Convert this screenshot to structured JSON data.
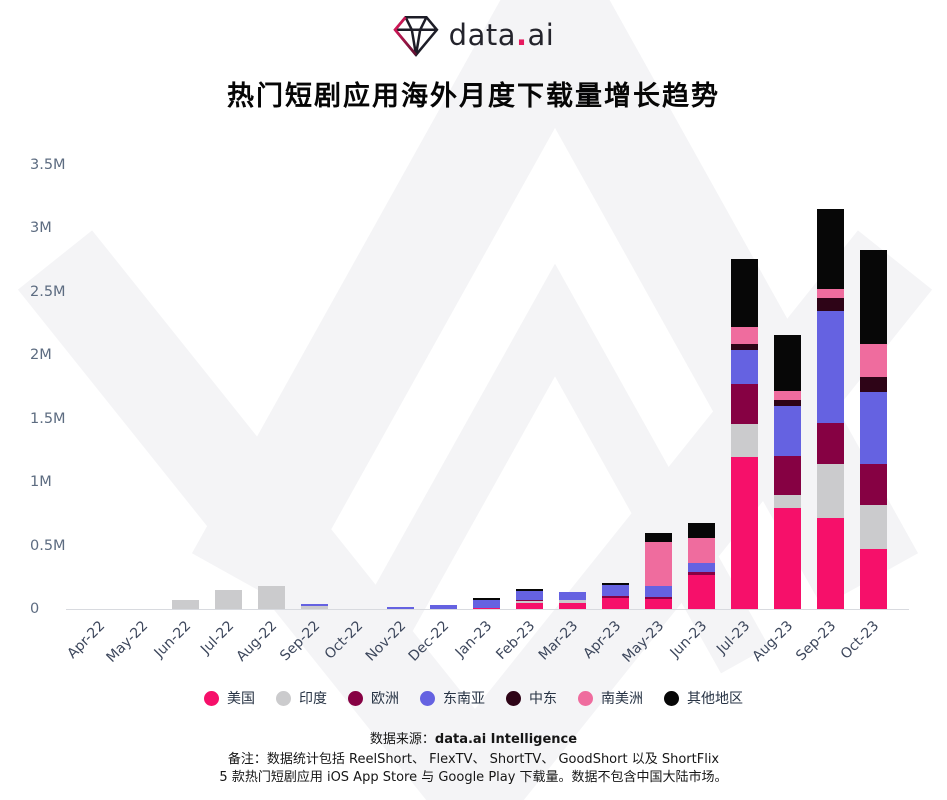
{
  "header": {
    "logo_name": "data",
    "logo_dot": ".",
    "logo_tld": "ai"
  },
  "title": "热门短剧应用海外月度下载量增长趋势",
  "chart_data": {
    "type": "bar",
    "stacked": true,
    "title": "热门短剧应用海外月度下载量增长趋势",
    "value_unit": "millions of downloads",
    "categories": [
      "Apr-22",
      "May-22",
      "Jun-22",
      "Jul-22",
      "Aug-22",
      "Sep-22",
      "Oct-22",
      "Nov-22",
      "Dec-22",
      "Jan-23",
      "Feb-23",
      "Mar-23",
      "Apr-23",
      "May-23",
      "Jun-23",
      "Jul-23",
      "Aug-23",
      "Sep-23",
      "Oct-23"
    ],
    "series": [
      {
        "name": "美国",
        "color": "#F6106A",
        "values": [
          0,
          0,
          0,
          0,
          0,
          0,
          0,
          0,
          0,
          0.01,
          0.05,
          0.045,
          0.09,
          0.08,
          0.27,
          1.2,
          0.8,
          0.72,
          0.47
        ]
      },
      {
        "name": "印度",
        "color": "#CBCBCD",
        "values": [
          0,
          0,
          0.07,
          0.15,
          0.18,
          0.02,
          0,
          0,
          0,
          0,
          0.01,
          0.03,
          0,
          0,
          0,
          0.26,
          0.1,
          0.42,
          0.35
        ]
      },
      {
        "name": "欧洲",
        "color": "#860143",
        "values": [
          0,
          0,
          0,
          0,
          0,
          0,
          0,
          0,
          0,
          0,
          0.01,
          0,
          0.012,
          0.018,
          0.018,
          0.31,
          0.31,
          0.33,
          0.32
        ]
      },
      {
        "name": "东南亚",
        "color": "#6562E1",
        "values": [
          0,
          0,
          0,
          0,
          0,
          0.02,
          0,
          0.015,
          0.03,
          0.06,
          0.07,
          0.06,
          0.09,
          0.08,
          0.074,
          0.27,
          0.39,
          0.88,
          0.57
        ]
      },
      {
        "name": "中东",
        "color": "#2E0417",
        "values": [
          0,
          0,
          0,
          0,
          0,
          0,
          0,
          0,
          0,
          0,
          0,
          0,
          0,
          0,
          0,
          0.05,
          0.05,
          0.1,
          0.12
        ]
      },
      {
        "name": "南美洲",
        "color": "#EF6C9E",
        "values": [
          0,
          0,
          0,
          0,
          0,
          0,
          0,
          0,
          0,
          0,
          0,
          0,
          0,
          0.35,
          0.2,
          0.13,
          0.07,
          0.07,
          0.26
        ]
      },
      {
        "name": "其他地区",
        "color": "#070707",
        "values": [
          0,
          0,
          0,
          0,
          0,
          0,
          0,
          0,
          0,
          0.015,
          0.02,
          0,
          0.015,
          0.075,
          0.12,
          0.54,
          0.44,
          0.63,
          0.74
        ]
      }
    ],
    "ylim": [
      0,
      3.5
    ],
    "yticks": [
      {
        "label": "0",
        "value": 0
      },
      {
        "label": "0.5M",
        "value": 0.5
      },
      {
        "label": "1M",
        "value": 1
      },
      {
        "label": "1.5M",
        "value": 1.5
      },
      {
        "label": "2M",
        "value": 2
      },
      {
        "label": "2.5M",
        "value": 2.5
      },
      {
        "label": "3M",
        "value": 3
      },
      {
        "label": "3.5M",
        "value": 3.5
      }
    ],
    "grid": false,
    "legend_position": "bottom"
  },
  "footer": {
    "source_label": "数据来源：",
    "source_value": "data.ai Intelligence",
    "note_line1": "备注：数据统计包括 ReelShort、 FlexTV、 ShortTV、 GoodShort 以及 ShortFlix",
    "note_line2": "5 款热门短剧应用 iOS App Store 与 Google Play 下载量。数据不包含中国大陆市场。"
  }
}
